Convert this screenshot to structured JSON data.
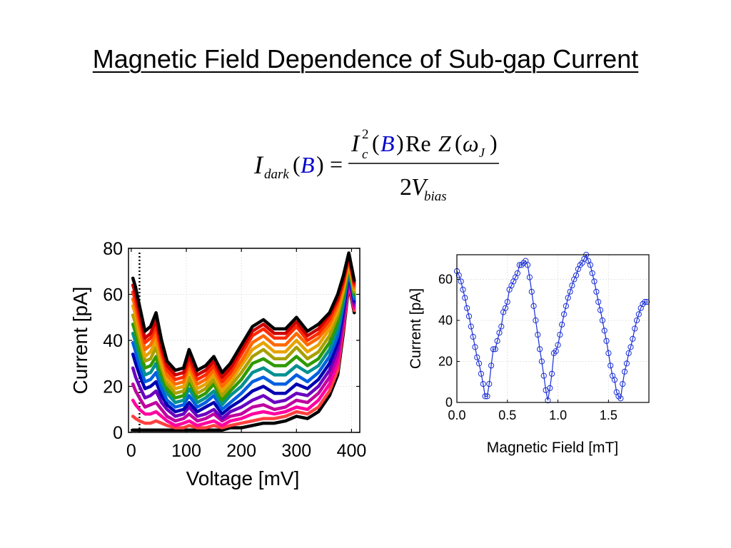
{
  "slide": {
    "title": "Magnetic Field Dependence of Sub-gap Current"
  },
  "formula": {
    "lhs_symbol": "I",
    "lhs_subscript": "dark",
    "lhs_argument": "B",
    "equals": "=",
    "num_symbol": "I",
    "num_superscript": "2",
    "num_subscript": "c",
    "num_argument": "B",
    "num_re": "Re",
    "num_z": "Z",
    "num_omega": "ω",
    "num_omega_subscript": "J",
    "den_coeff": "2",
    "den_symbol": "V",
    "den_subscript": "bias",
    "highlight_color": "#0000cc"
  },
  "chart_data": [
    {
      "type": "line",
      "xlabel": "Voltage [mV]",
      "ylabel": "Current [pA]",
      "xlim": [
        -5,
        415
      ],
      "ylim": [
        0,
        80
      ],
      "xticks": [
        0,
        100,
        200,
        300,
        400
      ],
      "yticks": [
        0,
        20,
        40,
        60,
        80
      ],
      "grid": true,
      "legend": "none",
      "marker_line_x": 15,
      "x": [
        3,
        8,
        15,
        25,
        35,
        45,
        55,
        65,
        80,
        95,
        105,
        120,
        135,
        150,
        165,
        180,
        200,
        220,
        240,
        260,
        280,
        300,
        320,
        340,
        360,
        375,
        385,
        395,
        405
      ],
      "series": [
        {
          "color": "#000000",
          "values": [
            67,
            63,
            55,
            44,
            46,
            52,
            40,
            31,
            27,
            28,
            36,
            27,
            29,
            33,
            26,
            30,
            38,
            46,
            49,
            45,
            45,
            50,
            44,
            47,
            52,
            60,
            68,
            78,
            66
          ]
        },
        {
          "color": "#cc0000",
          "values": [
            64,
            60,
            52,
            41,
            43,
            49,
            37,
            29,
            25,
            26,
            33,
            25,
            27,
            31,
            24,
            28,
            36,
            44,
            47,
            43,
            43,
            48,
            42,
            45,
            51,
            58,
            66,
            77,
            65
          ]
        },
        {
          "color": "#ff2a00",
          "values": [
            61,
            57,
            49,
            39,
            41,
            46,
            35,
            27,
            23,
            24,
            31,
            23,
            25,
            29,
            22,
            26,
            34,
            42,
            45,
            41,
            41,
            46,
            40,
            43,
            49,
            57,
            65,
            76,
            64
          ]
        },
        {
          "color": "#ff6a00",
          "values": [
            58,
            54,
            46,
            36,
            38,
            43,
            33,
            25,
            21,
            22,
            29,
            21,
            23,
            27,
            20,
            24,
            31,
            39,
            42,
            38,
            38,
            43,
            38,
            41,
            47,
            55,
            64,
            75,
            63
          ]
        },
        {
          "color": "#e8a300",
          "values": [
            55,
            51,
            43,
            33,
            35,
            40,
            30,
            23,
            19,
            20,
            27,
            19,
            21,
            25,
            18,
            22,
            29,
            36,
            39,
            35,
            35,
            40,
            35,
            38,
            45,
            53,
            62,
            74,
            62
          ]
        },
        {
          "color": "#a8a000",
          "values": [
            51,
            47,
            40,
            31,
            32,
            37,
            28,
            21,
            17,
            18,
            24,
            17,
            19,
            23,
            16,
            20,
            26,
            33,
            36,
            32,
            32,
            37,
            32,
            35,
            42,
            51,
            61,
            73,
            61
          ]
        },
        {
          "color": "#2e9a00",
          "values": [
            47,
            43,
            36,
            28,
            29,
            33,
            25,
            19,
            15,
            16,
            22,
            15,
            17,
            21,
            14,
            18,
            23,
            30,
            32,
            29,
            29,
            33,
            29,
            32,
            39,
            48,
            59,
            72,
            60
          ]
        },
        {
          "color": "#009090",
          "values": [
            43,
            39,
            33,
            25,
            26,
            30,
            22,
            17,
            13,
            14,
            19,
            13,
            15,
            18,
            12,
            16,
            20,
            26,
            28,
            25,
            25,
            29,
            26,
            29,
            36,
            45,
            57,
            71,
            59
          ]
        },
        {
          "color": "#0060e0",
          "values": [
            39,
            35,
            29,
            22,
            23,
            26,
            19,
            14,
            11,
            12,
            16,
            11,
            13,
            16,
            10,
            13,
            17,
            22,
            24,
            21,
            21,
            25,
            22,
            26,
            33,
            42,
            55,
            70,
            58
          ]
        },
        {
          "color": "#0000b0",
          "values": [
            34,
            30,
            25,
            19,
            20,
            22,
            16,
            12,
            9,
            10,
            13,
            9,
            11,
            13,
            8,
            11,
            14,
            18,
            20,
            17,
            17,
            21,
            19,
            23,
            30,
            39,
            53,
            69,
            57
          ]
        },
        {
          "color": "#6a00c0",
          "values": [
            28,
            24,
            20,
            15,
            16,
            18,
            13,
            10,
            7,
            8,
            11,
            7,
            8,
            10,
            6,
            9,
            11,
            14,
            16,
            13,
            14,
            17,
            16,
            20,
            27,
            36,
            51,
            68,
            56
          ]
        },
        {
          "color": "#c000a0",
          "values": [
            21,
            18,
            15,
            11,
            12,
            13,
            10,
            7,
            5,
            6,
            8,
            5,
            6,
            8,
            5,
            7,
            8,
            11,
            12,
            10,
            11,
            14,
            13,
            17,
            24,
            33,
            49,
            67,
            55
          ]
        },
        {
          "color": "#ff00a0",
          "values": [
            14,
            12,
            10,
            8,
            8,
            9,
            7,
            5,
            3,
            4,
            5,
            3,
            4,
            5,
            3,
            5,
            6,
            8,
            9,
            8,
            9,
            11,
            10,
            14,
            21,
            30,
            47,
            66,
            54
          ]
        },
        {
          "color": "#ff4040",
          "values": [
            7,
            6,
            5,
            4,
            4,
            5,
            4,
            3,
            2,
            2,
            3,
            2,
            2,
            3,
            2,
            3,
            4,
            5,
            6,
            6,
            7,
            9,
            8,
            11,
            18,
            27,
            45,
            65,
            53
          ]
        },
        {
          "color": "#000000",
          "values": [
            1,
            1,
            1,
            1,
            1,
            1,
            1,
            1,
            1,
            1,
            1,
            1,
            1,
            1,
            1,
            2,
            2,
            3,
            4,
            4,
            5,
            7,
            6,
            9,
            16,
            25,
            43,
            64,
            52
          ]
        }
      ]
    },
    {
      "type": "line",
      "marker": "circle",
      "color": "#1a2fd6",
      "xlabel": "Magnetic Field [mT]",
      "ylabel": "Current [pA]",
      "xlim": [
        0,
        1.9
      ],
      "ylim": [
        0,
        72
      ],
      "xticks": [
        "0.0",
        "0.5",
        "1.0",
        "1.5"
      ],
      "yticks": [
        0,
        20,
        40,
        60
      ],
      "grid": true,
      "x": [
        0.0,
        0.02,
        0.04,
        0.06,
        0.08,
        0.1,
        0.12,
        0.14,
        0.16,
        0.18,
        0.2,
        0.22,
        0.24,
        0.26,
        0.28,
        0.3,
        0.32,
        0.34,
        0.36,
        0.38,
        0.4,
        0.42,
        0.44,
        0.46,
        0.48,
        0.5,
        0.52,
        0.54,
        0.56,
        0.58,
        0.6,
        0.62,
        0.64,
        0.66,
        0.68,
        0.7,
        0.72,
        0.74,
        0.76,
        0.78,
        0.8,
        0.82,
        0.84,
        0.86,
        0.88,
        0.9,
        0.92,
        0.94,
        0.96,
        0.98,
        1.0,
        1.02,
        1.04,
        1.06,
        1.08,
        1.1,
        1.12,
        1.14,
        1.16,
        1.18,
        1.2,
        1.22,
        1.24,
        1.26,
        1.28,
        1.3,
        1.32,
        1.34,
        1.36,
        1.38,
        1.4,
        1.42,
        1.44,
        1.46,
        1.48,
        1.5,
        1.52,
        1.54,
        1.56,
        1.58,
        1.6,
        1.62,
        1.64,
        1.66,
        1.68,
        1.7,
        1.72,
        1.74,
        1.76,
        1.78,
        1.8,
        1.82,
        1.84,
        1.86,
        1.88
      ],
      "y": [
        64,
        62,
        59,
        55,
        51,
        46,
        42,
        37,
        32,
        27,
        22,
        19,
        14,
        9,
        3,
        3,
        9,
        18,
        26,
        26,
        30,
        34,
        37,
        44,
        46,
        49,
        55,
        57,
        59,
        61,
        63,
        67,
        67,
        68,
        69,
        67,
        61,
        54,
        47,
        40,
        33,
        26,
        20,
        13,
        6,
        1,
        7,
        14,
        24,
        25,
        28,
        33,
        38,
        43,
        47,
        51,
        54,
        57,
        60,
        62,
        65,
        67,
        68,
        70,
        72,
        69,
        67,
        63,
        59,
        54,
        49,
        45,
        40,
        35,
        30,
        24,
        18,
        13,
        11,
        5,
        3,
        2,
        9,
        15,
        19,
        24,
        27,
        31,
        36,
        40,
        43,
        46,
        48,
        49,
        49
      ]
    }
  ]
}
